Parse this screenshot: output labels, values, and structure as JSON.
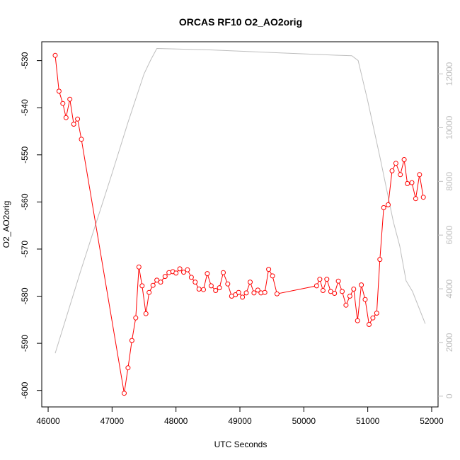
{
  "chart_data": {
    "type": "line",
    "title": "ORCAS RF10 O2_AO2orig",
    "xlabel": "UTC Seconds",
    "ylabel": "O2_AO2orig",
    "xlim": [
      45900,
      52100
    ],
    "ylim": [
      -603.5,
      -526
    ],
    "y2lim": [
      -400,
      13200
    ],
    "x_ticks": [
      46000,
      47000,
      48000,
      49000,
      50000,
      51000,
      52000
    ],
    "y_ticks": [
      -530,
      -540,
      -550,
      -560,
      -570,
      -580,
      -590,
      -600
    ],
    "y2_ticks": [
      0,
      2000,
      4000,
      6000,
      8000,
      10000,
      12000
    ],
    "colors": {
      "o2": "#ff0000",
      "altitude": "#bebebe",
      "axis": "#000000",
      "y2_axis": "#bebebe"
    },
    "series": [
      {
        "axis": "left",
        "points": [
          [
            46110,
            -528.9
          ],
          [
            46170,
            -536.5
          ],
          [
            46230,
            -539.1
          ],
          [
            46280,
            -542.1
          ],
          [
            46340,
            -538.2
          ],
          [
            46400,
            -543.5
          ],
          [
            46460,
            -542.4
          ],
          [
            46520,
            -546.7
          ],
          [
            47190,
            -600.6
          ],
          [
            47250,
            -595.2
          ],
          [
            47310,
            -589.4
          ],
          [
            47370,
            -584.6
          ],
          [
            47420,
            -573.8
          ],
          [
            47470,
            -577.8
          ],
          [
            47530,
            -583.7
          ],
          [
            47580,
            -579.2
          ],
          [
            47640,
            -577.7
          ],
          [
            47700,
            -576.6
          ],
          [
            47760,
            -577.0
          ],
          [
            47830,
            -575.8
          ],
          [
            47890,
            -575.0
          ],
          [
            47950,
            -574.8
          ],
          [
            48000,
            -575.1
          ],
          [
            48060,
            -574.2
          ],
          [
            48120,
            -574.9
          ],
          [
            48180,
            -574.4
          ],
          [
            48240,
            -576.0
          ],
          [
            48300,
            -577.0
          ],
          [
            48360,
            -578.5
          ],
          [
            48430,
            -578.6
          ],
          [
            48490,
            -575.2
          ],
          [
            48550,
            -577.8
          ],
          [
            48620,
            -578.8
          ],
          [
            48680,
            -578.2
          ],
          [
            48740,
            -575.0
          ],
          [
            48810,
            -577.4
          ],
          [
            48870,
            -580.0
          ],
          [
            48930,
            -579.7
          ],
          [
            48980,
            -579.2
          ],
          [
            49040,
            -580.2
          ],
          [
            49100,
            -579.3
          ],
          [
            49160,
            -577.0
          ],
          [
            49220,
            -579.3
          ],
          [
            49280,
            -578.7
          ],
          [
            49330,
            -579.3
          ],
          [
            49390,
            -579.2
          ],
          [
            49450,
            -574.3
          ],
          [
            49510,
            -575.7
          ],
          [
            49580,
            -579.5
          ],
          [
            50200,
            -577.8
          ],
          [
            50250,
            -576.4
          ],
          [
            50300,
            -578.8
          ],
          [
            50360,
            -576.4
          ],
          [
            50420,
            -579.0
          ],
          [
            50480,
            -579.4
          ],
          [
            50540,
            -576.8
          ],
          [
            50600,
            -579.0
          ],
          [
            50660,
            -581.9
          ],
          [
            50720,
            -580.0
          ],
          [
            50780,
            -578.5
          ],
          [
            50840,
            -585.2
          ],
          [
            50900,
            -577.6
          ],
          [
            50960,
            -580.7
          ],
          [
            51020,
            -586.0
          ],
          [
            51080,
            -584.6
          ],
          [
            51140,
            -583.6
          ],
          [
            51190,
            -572.2
          ],
          [
            51250,
            -561.2
          ],
          [
            51320,
            -560.6
          ],
          [
            51380,
            -553.4
          ],
          [
            51440,
            -551.8
          ],
          [
            51510,
            -554.2
          ],
          [
            51570,
            -551.0
          ],
          [
            51620,
            -556.1
          ],
          [
            51690,
            -555.9
          ],
          [
            51750,
            -559.3
          ],
          [
            51810,
            -554.2
          ],
          [
            51870,
            -559.0
          ]
        ]
      },
      {
        "axis": "right",
        "points": [
          [
            46110,
            1600
          ],
          [
            46500,
            4600
          ],
          [
            47000,
            8300
          ],
          [
            47250,
            10200
          ],
          [
            47500,
            12000
          ],
          [
            47600,
            12500
          ],
          [
            47700,
            12950
          ],
          [
            48500,
            12900
          ],
          [
            49500,
            12800
          ],
          [
            50500,
            12700
          ],
          [
            50750,
            12680
          ],
          [
            50850,
            12500
          ],
          [
            51000,
            11000
          ],
          [
            51200,
            8800
          ],
          [
            51400,
            6500
          ],
          [
            51500,
            5600
          ],
          [
            51600,
            4300
          ],
          [
            51700,
            3900
          ],
          [
            51900,
            2700
          ]
        ]
      }
    ]
  }
}
